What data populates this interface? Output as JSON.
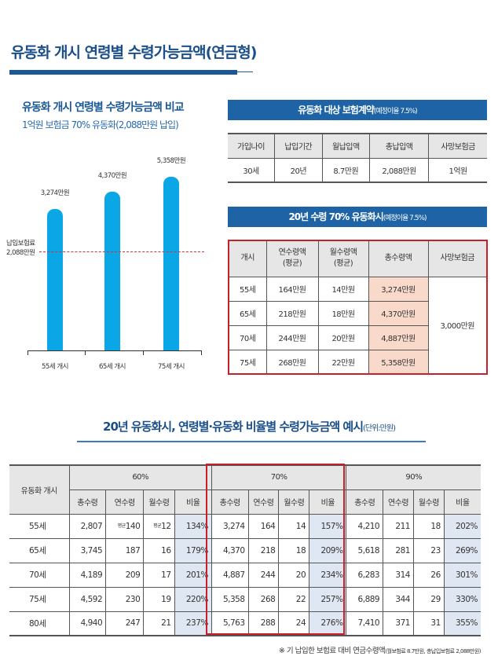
{
  "title": "유동화 개시 연령별 수령가능금액(연금형)",
  "colors": {
    "accent": "#1e63a5",
    "bar": "#0aa6e6",
    "highlight_border": "#c8202a",
    "pink_cell": "#f9d9c9",
    "ratio_cell": "#dfe7f3"
  },
  "chart_data": {
    "type": "bar",
    "title": "유동화 개시 연령별 수령가능금액 비교",
    "subtitle": "1억원 보험금 70% 유동화(2,088만원 납입)",
    "categories": [
      "55세 개시",
      "65세 개시",
      "75세 개시"
    ],
    "values": [
      3274,
      4370,
      5358
    ],
    "data_labels": [
      "3,274만원",
      "4,370만원",
      "5,358만원"
    ],
    "reference_line": {
      "value": 2088,
      "label_line1": "납입보험료",
      "label_line2": "2,088만원",
      "style": "dashed",
      "color": "#d9303a"
    }
  },
  "contract": {
    "header": "유동화 대상 보험계약",
    "header_note": "(예정이율 7.5%)",
    "columns": [
      "가입나이",
      "납입기간",
      "월납입액",
      "총납입액",
      "사망보험금"
    ],
    "values": [
      "30세",
      "20년",
      "8.7만원",
      "2,088만원",
      "1억원"
    ]
  },
  "scenario": {
    "header": "20년 수령 70% 유동화시",
    "header_note": "(예정이율 7.5%)",
    "columns": [
      "개시",
      "연수령액",
      "(평균)",
      "월수령액",
      "(평균)",
      "총수령액",
      "사망보험금"
    ],
    "rows": [
      [
        "55세",
        "164만원",
        "14만원",
        "3,274만원"
      ],
      [
        "65세",
        "218만원",
        "18만원",
        "4,370만원"
      ],
      [
        "70세",
        "244만원",
        "20만원",
        "4,887만원"
      ],
      [
        "75세",
        "268만원",
        "22만원",
        "5,358만원"
      ]
    ],
    "death_benefit": "3,000만원"
  },
  "examples": {
    "title": "20년 유동화시, 연령별·유동화 비율별 수령가능금액 예시",
    "unit": "(단위:만원)",
    "row_header": "유동화 개시",
    "groups": [
      "60%",
      "70%",
      "90%"
    ],
    "subcols": [
      "총수령",
      "연수령",
      "월수령",
      "비율"
    ],
    "avg_mark": "평균",
    "rows": [
      [
        "55세",
        "2,807",
        "140",
        "12",
        "134%",
        "3,274",
        "164",
        "14",
        "157%",
        "4,210",
        "211",
        "18",
        "202%"
      ],
      [
        "65세",
        "3,745",
        "187",
        "16",
        "179%",
        "4,370",
        "218",
        "18",
        "209%",
        "5,618",
        "281",
        "23",
        "269%"
      ],
      [
        "70세",
        "4,189",
        "209",
        "17",
        "201%",
        "4,887",
        "244",
        "20",
        "234%",
        "6,283",
        "314",
        "26",
        "301%"
      ],
      [
        "75세",
        "4,592",
        "230",
        "19",
        "220%",
        "5,358",
        "268",
        "22",
        "257%",
        "6,889",
        "344",
        "29",
        "330%"
      ],
      [
        "80세",
        "4,940",
        "247",
        "21",
        "237%",
        "5,763",
        "288",
        "24",
        "276%",
        "7,410",
        "371",
        "31",
        "355%"
      ]
    ],
    "footnote": "※ 기 납입한 보험료 대비 연금수령액",
    "footnote_note": "(월보험료 8.7만원, 총납입보험료 2,088만원)"
  }
}
